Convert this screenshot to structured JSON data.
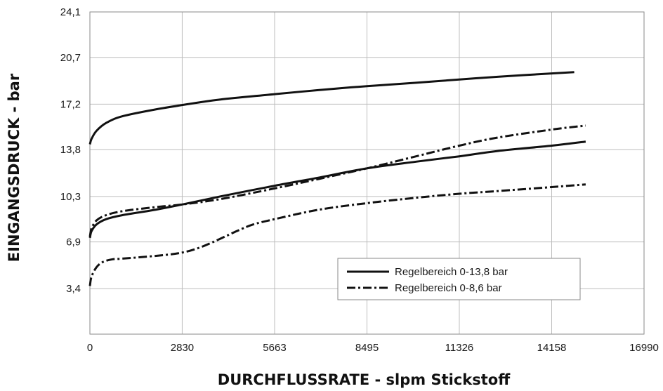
{
  "chart_data": {
    "type": "line",
    "xlabel": "DURCHFLUSSRATE - slpm Stickstoff",
    "ylabel": "EINGANGSDRUCK - bar",
    "xlim": [
      0,
      16990
    ],
    "ylim": [
      0,
      24.1
    ],
    "x_ticks": [
      "0",
      "2830",
      "5663",
      "8495",
      "11326",
      "14158",
      "16990"
    ],
    "x_tick_values": [
      0,
      2830,
      5663,
      8495,
      11326,
      14158,
      16990
    ],
    "y_ticks": [
      "3,4",
      "6,9",
      "10,3",
      "13,8",
      "17,2",
      "20,7",
      "24,1"
    ],
    "y_tick_values": [
      3.4,
      6.9,
      10.3,
      13.8,
      17.2,
      20.7,
      24.1
    ],
    "grid": true,
    "legend_position": "lower-right",
    "series": [
      {
        "name": "Regelbereich 0-13,8 bar",
        "style": "solid",
        "legend": true,
        "x": [
          0,
          50,
          200,
          500,
          1000,
          2000,
          3000,
          4000,
          5663,
          7000,
          8495,
          10000,
          11326,
          12500,
          14158,
          14850
        ],
        "y": [
          14.2,
          14.6,
          15.2,
          15.8,
          16.3,
          16.8,
          17.2,
          17.55,
          17.95,
          18.25,
          18.55,
          18.8,
          19.05,
          19.25,
          19.5,
          19.6
        ]
      },
      {
        "name": "Regelbereich 0-13,8 bar",
        "style": "solid",
        "legend": false,
        "x": [
          0,
          50,
          200,
          500,
          1000,
          2000,
          2830,
          4000,
          5663,
          7000,
          8495,
          10000,
          11326,
          12500,
          14158,
          15200
        ],
        "y": [
          7.2,
          7.7,
          8.2,
          8.6,
          8.9,
          9.3,
          9.7,
          10.3,
          11.1,
          11.7,
          12.4,
          12.9,
          13.3,
          13.7,
          14.1,
          14.4
        ]
      },
      {
        "name": "Regelbereich 0-8,6 bar",
        "style": "dashdot",
        "legend": true,
        "x": [
          0,
          50,
          200,
          500,
          1000,
          2000,
          2830,
          4000,
          5663,
          7000,
          8495,
          10000,
          11326,
          12500,
          14158,
          15200
        ],
        "y": [
          7.3,
          7.9,
          8.5,
          8.9,
          9.2,
          9.5,
          9.7,
          10.1,
          10.9,
          11.6,
          12.4,
          13.3,
          14.1,
          14.7,
          15.3,
          15.6
        ]
      },
      {
        "name": "Regelbereich 0-8,6 bar",
        "style": "dashdot",
        "legend": false,
        "x": [
          0,
          50,
          200,
          400,
          700,
          1000,
          2000,
          2830,
          3500,
          4500,
          5000,
          5663,
          7000,
          8495,
          10000,
          11326,
          12500,
          14158,
          15200
        ],
        "y": [
          3.6,
          4.3,
          5.0,
          5.4,
          5.6,
          5.65,
          5.85,
          6.1,
          6.6,
          7.7,
          8.2,
          8.6,
          9.3,
          9.8,
          10.2,
          10.5,
          10.7,
          11.0,
          11.2
        ]
      }
    ],
    "legend": [
      {
        "label": "Regelbereich 0-13,8 bar",
        "style": "solid"
      },
      {
        "label": "Regelbereich 0-8,6 bar",
        "style": "dashdot"
      }
    ],
    "colors": {
      "line": "#111111",
      "grid": "#bdbdbd",
      "frame": "#8a8a8a"
    }
  }
}
